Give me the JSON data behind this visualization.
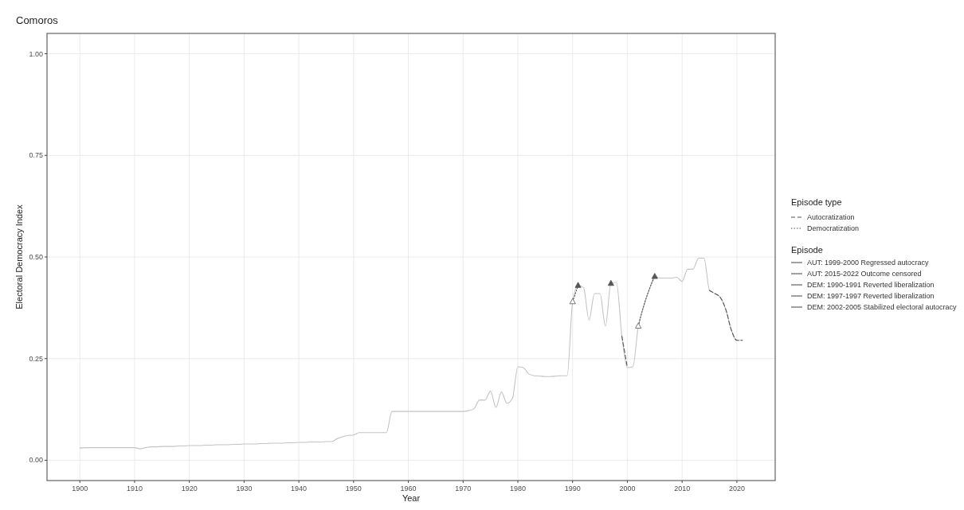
{
  "chart_data": {
    "type": "line",
    "title": "Comoros",
    "xlabel": "Year",
    "ylabel": "Electoral Democracy Index",
    "legend_title": "Episode type",
    "legend": "right",
    "grid": true,
    "xlim": [
      1894,
      2027
    ],
    "xticks": [
      1900,
      1910,
      1920,
      1930,
      1940,
      1950,
      1960,
      1970,
      1980,
      1990,
      2000,
      2010,
      2020
    ],
    "ylim": [
      -0.05,
      1.05
    ],
    "yticks": [
      {
        "value": 0,
        "label": "0.00"
      },
      {
        "value": 0.25,
        "label": "0.25"
      },
      {
        "value": 0.5,
        "label": "0.50"
      },
      {
        "value": 0.75,
        "label": "0.75"
      },
      {
        "value": 1,
        "label": "1.00"
      }
    ],
    "annotations": [
      "Episode",
      "AUT: 1999-2000 Regressed autocracy",
      "AUT: 2015-2022 Outcome censored",
      "DEM: 1990-1991 Reverted liberalization",
      "DEM: 1997-1997 Reverted liberalization",
      "DEM: 2002-2005 Stabilized electoral autocracy"
    ],
    "series": [
      {
        "color": "#c4c4c4",
        "line_style": "solid",
        "marker": "none",
        "x": [
          1900,
          1901,
          1902,
          1903,
          1904,
          1905,
          1906,
          1907,
          1908,
          1909,
          1910,
          1911,
          1912,
          1913,
          1914,
          1915,
          1916,
          1917,
          1918,
          1919,
          1920,
          1921,
          1922,
          1923,
          1924,
          1925,
          1926,
          1927,
          1928,
          1929,
          1930,
          1931,
          1932,
          1933,
          1934,
          1935,
          1936,
          1937,
          1938,
          1939,
          1940,
          1941,
          1942,
          1943,
          1944,
          1945,
          1946,
          1947,
          1948,
          1949,
          1950,
          1951,
          1952,
          1953,
          1954,
          1955,
          1956,
          1957,
          1958,
          1959,
          1960,
          1961,
          1962,
          1963,
          1964,
          1965,
          1966,
          1967,
          1968,
          1969,
          1970,
          1971,
          1972,
          1973,
          1974,
          1975,
          1976,
          1977,
          1978,
          1979,
          1980,
          1981,
          1982,
          1983,
          1984,
          1985,
          1986,
          1987,
          1988,
          1989,
          1990,
          1991,
          1992,
          1993,
          1994,
          1995,
          1996,
          1997,
          1998,
          1999,
          2000,
          2001,
          2002,
          2003,
          2004,
          2005,
          2006,
          2007,
          2008,
          2009,
          2010,
          2011,
          2012,
          2013,
          2014,
          2015,
          2016,
          2017,
          2018,
          2019,
          2020,
          2021
        ],
        "values": [
          0.03,
          0.031,
          0.031,
          0.031,
          0.031,
          0.031,
          0.031,
          0.031,
          0.031,
          0.031,
          0.031,
          0.028,
          0.031,
          0.033,
          0.033,
          0.034,
          0.034,
          0.034,
          0.035,
          0.035,
          0.036,
          0.036,
          0.036,
          0.037,
          0.037,
          0.038,
          0.038,
          0.038,
          0.039,
          0.039,
          0.04,
          0.04,
          0.04,
          0.041,
          0.041,
          0.042,
          0.042,
          0.042,
          0.043,
          0.043,
          0.044,
          0.044,
          0.045,
          0.045,
          0.045,
          0.046,
          0.046,
          0.053,
          0.058,
          0.061,
          0.062,
          0.068,
          0.068,
          0.068,
          0.068,
          0.068,
          0.068,
          0.12,
          0.12,
          0.12,
          0.12,
          0.12,
          0.12,
          0.12,
          0.12,
          0.12,
          0.12,
          0.12,
          0.12,
          0.12,
          0.12,
          0.122,
          0.127,
          0.148,
          0.148,
          0.17,
          0.13,
          0.168,
          0.14,
          0.152,
          0.23,
          0.228,
          0.212,
          0.208,
          0.207,
          0.206,
          0.206,
          0.207,
          0.208,
          0.208,
          0.39,
          0.43,
          0.425,
          0.345,
          0.41,
          0.41,
          0.33,
          0.435,
          0.438,
          0.305,
          0.228,
          0.23,
          0.33,
          0.38,
          0.42,
          0.452,
          0.448,
          0.448,
          0.448,
          0.45,
          0.44,
          0.47,
          0.47,
          0.497,
          0.497,
          0.418,
          0.41,
          0.4,
          0.37,
          0.32,
          0.295,
          0.295
        ]
      },
      {
        "name": "Autocratization",
        "color": "#555555",
        "line_style": "dashed",
        "x": [
          1999,
          2000,
          2001,
          2015,
          2016,
          2017,
          2018,
          2019,
          2020,
          2021
        ],
        "values": [
          0.305,
          0.228,
          null,
          0.418,
          0.41,
          0.4,
          0.37,
          0.32,
          0.295,
          0.295
        ]
      },
      {
        "name": "Democratization",
        "color": "#555555",
        "line_style": "dotted",
        "marker": "triangle",
        "x": [
          1990,
          1991,
          1992,
          1997,
          1998,
          2002,
          2003,
          2004,
          2005
        ],
        "values": [
          0.39,
          0.43,
          null,
          0.435,
          null,
          0.33,
          0.38,
          0.42,
          0.452
        ]
      }
    ]
  }
}
